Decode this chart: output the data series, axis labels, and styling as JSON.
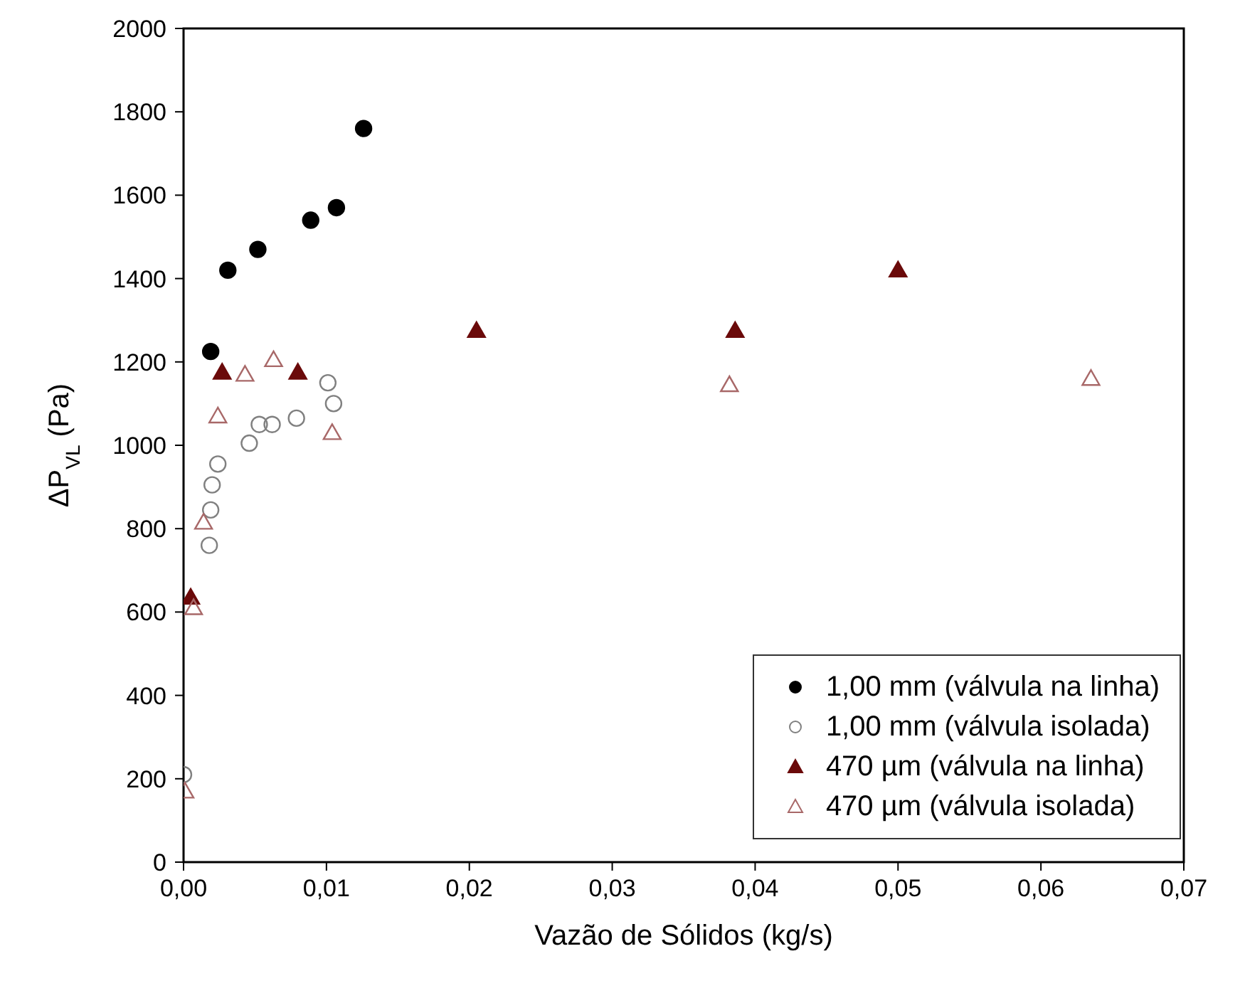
{
  "chart_data": {
    "type": "scatter",
    "xlabel": "Vazão de Sólidos (kg/s)",
    "ylabel": "ΔP$_{VL}$ (Pa)",
    "xlim": [
      0,
      0.07
    ],
    "xticks": [
      {
        "value": 0,
        "label": "0,00"
      },
      {
        "value": 0.01,
        "label": "0,01"
      },
      {
        "value": 0.02,
        "label": "0,02"
      },
      {
        "value": 0.03,
        "label": "0,03"
      },
      {
        "value": 0.04,
        "label": "0,04"
      },
      {
        "value": 0.05,
        "label": "0,05"
      },
      {
        "value": 0.06,
        "label": "0,06"
      },
      {
        "value": 0.07,
        "label": "0,07"
      }
    ],
    "ylim": [
      0,
      2000
    ],
    "yticks": [
      0,
      200,
      400,
      600,
      800,
      1000,
      1200,
      1400,
      1600,
      1800,
      2000
    ],
    "grid": false,
    "legend": "bottom right",
    "series": [
      {
        "name": "1,00 mm (válvula na linha)",
        "color": "#000000",
        "marker": "circle",
        "x": [
          0.0019,
          0.0031,
          0.0052,
          0.0089,
          0.0107,
          0.0126
        ],
        "values": [
          1225,
          1420,
          1470,
          1540,
          1570,
          1760
        ]
      },
      {
        "name": "1,00 mm (válvula isolada)",
        "color": "#808080",
        "marker": "circle-open",
        "x": [
          0,
          0.0018,
          0.0019,
          0.002,
          0.0024,
          0.0046,
          0.0053,
          0.0062,
          0.0079,
          0.0101,
          0.0105
        ],
        "values": [
          210,
          760,
          845,
          905,
          955,
          1005,
          1050,
          1050,
          1065,
          1150,
          1100
        ]
      },
      {
        "name": "470 µm (válvula na linha)",
        "color": "#6b0a0a",
        "marker": "triangle",
        "x": [
          0.0005,
          0.0027,
          0.008,
          0.0205,
          0.0386,
          0.05
        ],
        "values": [
          635,
          1175,
          1175,
          1275,
          1275,
          1420
        ]
      },
      {
        "name": "470 µm (válvula isolada)",
        "color": "#a86868",
        "marker": "triangle-open",
        "x": [
          0.0001,
          0.0007,
          0.0014,
          0.0024,
          0.0043,
          0.0063,
          0.0104,
          0.0382,
          0.0635
        ],
        "values": [
          170,
          610,
          815,
          1070,
          1170,
          1205,
          1030,
          1145,
          1160
        ]
      }
    ]
  }
}
